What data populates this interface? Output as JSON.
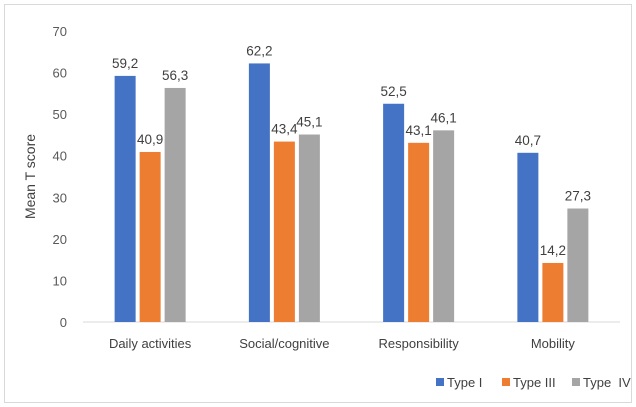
{
  "chart_data": {
    "type": "bar",
    "title": "",
    "xlabel": "",
    "ylabel": "Mean T score",
    "ylim": [
      0,
      70
    ],
    "yticks": [
      0,
      10,
      20,
      30,
      40,
      50,
      60,
      70
    ],
    "grid": false,
    "legend_position": "bottom-right",
    "categories": [
      "Daily activities",
      "Social/cognitive",
      "Responsibility",
      "Mobility"
    ],
    "series": [
      {
        "name": "Type I",
        "color": "#4472c4",
        "values": [
          59.2,
          62.2,
          52.5,
          40.7
        ],
        "labels": [
          "59,2",
          "62,2",
          "52,5",
          "40,7"
        ]
      },
      {
        "name": "Type III",
        "color": "#ed7d31",
        "values": [
          40.9,
          43.4,
          43.1,
          14.2
        ],
        "labels": [
          "40,9",
          "43,4",
          "43,1",
          "14,2"
        ]
      },
      {
        "name": "Type  IV",
        "color": "#a5a5a5",
        "values": [
          56.3,
          45.1,
          46.1,
          27.3
        ],
        "labels": [
          "56,3",
          "45,1",
          "46,1",
          "27,3"
        ]
      }
    ]
  }
}
